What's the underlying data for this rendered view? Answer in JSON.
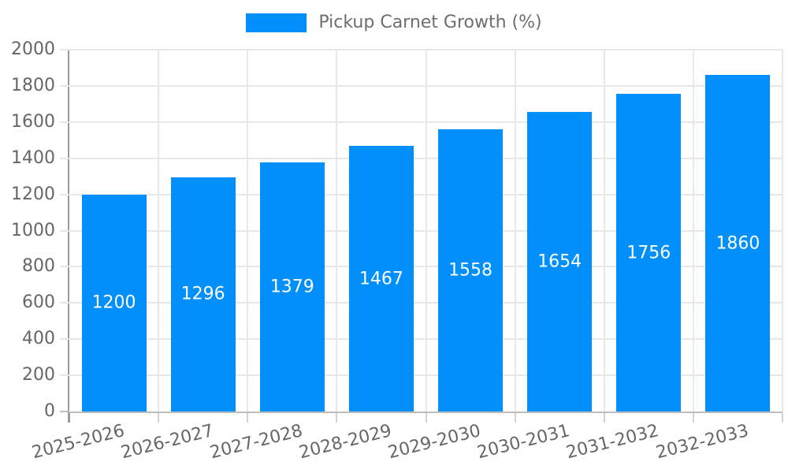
{
  "legend": {
    "label": "Pickup Carnet Growth (%)"
  },
  "chart_data": {
    "type": "bar",
    "title": "",
    "categories": [
      "2025-2026",
      "2026-2027",
      "2027-2028",
      "2028-2029",
      "2029-2030",
      "2030-2031",
      "2031-2032",
      "2032-2033"
    ],
    "series": [
      {
        "name": "Pickup Carnet Growth (%)",
        "values": [
          1200,
          1296,
          1379,
          1467,
          1558,
          1654,
          1756,
          1860
        ]
      }
    ],
    "bar_labels": [
      "1200",
      "1296",
      "1379",
      "1467",
      "1558",
      "1654",
      "1756",
      "1860"
    ],
    "yticks": [
      0,
      200,
      400,
      600,
      800,
      1000,
      1200,
      1400,
      1600,
      1800,
      2000
    ],
    "ylim": [
      0,
      2000
    ],
    "ytick_step": 200,
    "xlabel": "",
    "ylabel": "",
    "grid": true,
    "legend_position": "top-center",
    "bar_label_position": "inside-center",
    "x_tick_rotation_deg": -14
  },
  "colors": {
    "bar": "#008FFB",
    "legend_text": "#6e6e6e",
    "axis_label": "#666666",
    "grid_line": "#e7e7e7",
    "y_axis_line": "#9a9a9a",
    "x_axis_line": "#bdbdbd",
    "x_tick": "#d2d2d2",
    "bar_label": "#ffffff",
    "background": "#ffffff"
  }
}
